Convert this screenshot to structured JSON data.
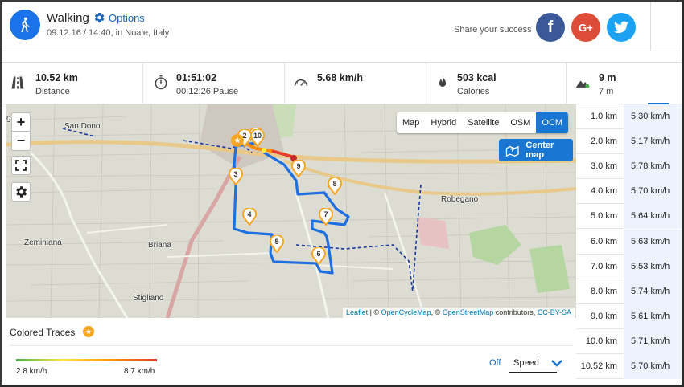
{
  "header": {
    "activity": "Walking",
    "options_label": "Options",
    "subtitle": "09.12.16 / 14:40, in Noale, Italy",
    "share_text": "Share your success",
    "social": {
      "facebook": "f",
      "google": "G+",
      "twitter": "t"
    },
    "icons": {
      "activity": "walking-person-icon",
      "options": "gear-icon"
    }
  },
  "stats": [
    {
      "value": "10.52 km",
      "label": "Distance",
      "icon": "road-icon"
    },
    {
      "value": "01:51:02",
      "label": "00:12:26 Pause",
      "icon": "stopwatch-icon"
    },
    {
      "value": "5.68 km/h",
      "label": "",
      "icon": "speedometer-icon"
    },
    {
      "value": "503 kcal",
      "label": "Calories",
      "icon": "flame-icon"
    },
    {
      "value": "9 m",
      "label": "7 m",
      "icon": "elevation-icon"
    }
  ],
  "map": {
    "layers": [
      "Map",
      "Hybrid",
      "Satellite",
      "OSM",
      "OCM"
    ],
    "active_layer": "OCM",
    "center_map": "Center map",
    "places": {
      "san_dono": "San Dono",
      "robegano": "Robegano",
      "zeminiana": "Zeminiana",
      "briana": "Briana",
      "stigliano": "Stigliano",
      "g": "g"
    },
    "attribution": {
      "leaflet": "Leaflet",
      "sep1": " | © ",
      "ocm": "OpenCycleMap",
      "sep2": ", © ",
      "osm": "OpenStreetMap",
      "contrib": " contributors, ",
      "license": "CC-BY-SA"
    },
    "markers": [
      "1",
      "2",
      "3",
      "4",
      "5",
      "6",
      "7",
      "8",
      "9",
      "10"
    ],
    "route_color": "#1e6fe0"
  },
  "speed_table": [
    {
      "km": "1.0 km",
      "speed": "5.30 km/h"
    },
    {
      "km": "2.0 km",
      "speed": "5.17 km/h"
    },
    {
      "km": "3.0 km",
      "speed": "5.78 km/h"
    },
    {
      "km": "4.0 km",
      "speed": "5.70 km/h"
    },
    {
      "km": "5.0 km",
      "speed": "5.64 km/h"
    },
    {
      "km": "6.0 km",
      "speed": "5.63 km/h"
    },
    {
      "km": "7.0 km",
      "speed": "5.53 km/h"
    },
    {
      "km": "8.0 km",
      "speed": "5.74 km/h"
    },
    {
      "km": "9.0 km",
      "speed": "5.61 km/h"
    },
    {
      "km": "10.0 km",
      "speed": "5.71 km/h"
    },
    {
      "km": "10.52 km",
      "speed": "5.70 km/h"
    }
  ],
  "colored_traces": {
    "label": "Colored Traces",
    "min": "2.8 km/h",
    "max": "8.7 km/h",
    "off": "Off",
    "metric": "Speed"
  },
  "colors": {
    "accent": "#1976d2",
    "facebook": "#3b5998",
    "google": "#dd4b39",
    "twitter": "#1da1f2",
    "marker": "#f5a623"
  }
}
